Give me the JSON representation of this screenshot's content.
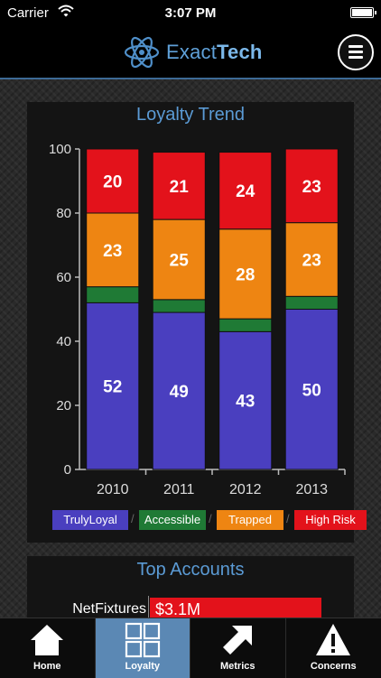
{
  "status_bar": {
    "carrier": "Carrier",
    "time": "3:07 PM"
  },
  "header": {
    "logo_prefix": "Exact",
    "logo_suffix": "Tech",
    "menu_icon": "hamburger-menu-icon"
  },
  "loyalty_card": {
    "title": "Loyalty Trend",
    "legend": [
      {
        "label": "TrulyLoyal",
        "color": "#4a3fbf"
      },
      {
        "label": "Accessible",
        "color": "#1f7a35"
      },
      {
        "label": "Trapped",
        "color": "#ee8512"
      },
      {
        "label": "High Risk",
        "color": "#e3121b"
      }
    ]
  },
  "chart_data": {
    "type": "bar",
    "stacked": true,
    "title": "Loyalty Trend",
    "categories": [
      "2010",
      "2011",
      "2012",
      "2013"
    ],
    "ylim": [
      0,
      100
    ],
    "yticks": [
      0,
      20,
      40,
      60,
      80,
      100
    ],
    "series": [
      {
        "name": "TrulyLoyal",
        "color": "#4a3fbf",
        "values": [
          52,
          49,
          43,
          50
        ],
        "labels": [
          "52",
          "49",
          "43",
          "50"
        ]
      },
      {
        "name": "Accessible",
        "color": "#1f7a35",
        "values": [
          5,
          4,
          4,
          4
        ],
        "labels": [
          "",
          "",
          "",
          ""
        ]
      },
      {
        "name": "Trapped",
        "color": "#ee8512",
        "values": [
          23,
          25,
          28,
          23
        ],
        "labels": [
          "23",
          "25",
          "28",
          "23"
        ]
      },
      {
        "name": "High Risk",
        "color": "#e3121b",
        "values": [
          20,
          21,
          24,
          23
        ],
        "labels": [
          "20",
          "21",
          "24",
          "23"
        ]
      }
    ],
    "legend_position": "bottom"
  },
  "accounts_card": {
    "title": "Top Accounts",
    "rows": [
      {
        "name": "NetFixtures",
        "value": "$3.1M"
      }
    ]
  },
  "tabbar": {
    "tabs": [
      {
        "label": "Home",
        "icon": "home-icon"
      },
      {
        "label": "Loyalty",
        "icon": "grid-icon",
        "active": true
      },
      {
        "label": "Metrics",
        "icon": "arrow-up-right-icon"
      },
      {
        "label": "Concerns",
        "icon": "warning-icon"
      }
    ]
  }
}
